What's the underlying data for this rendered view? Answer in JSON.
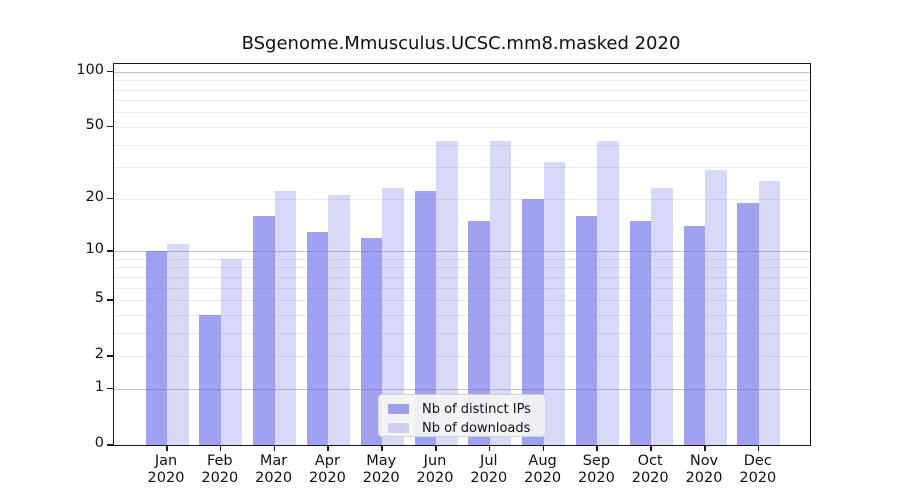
{
  "chart_data": {
    "type": "bar",
    "title": "BSgenome.Mmusculus.UCSC.mm8.masked 2020",
    "yscale": "log1p",
    "ylim": [
      0,
      110
    ],
    "yticks": [
      0,
      1,
      2,
      5,
      10,
      20,
      50,
      100
    ],
    "grid": {
      "decade_values": [
        1,
        10,
        100
      ],
      "minor_values": [
        2,
        3,
        4,
        5,
        6,
        7,
        8,
        9,
        20,
        30,
        40,
        50,
        60,
        70,
        80,
        90
      ]
    },
    "categories": [
      "Jan",
      "Feb",
      "Mar",
      "Apr",
      "May",
      "Jun",
      "Jul",
      "Aug",
      "Sep",
      "Oct",
      "Nov",
      "Dec"
    ],
    "xtick_year": "2020",
    "series": [
      {
        "name": "Nb of distinct IPs",
        "color_hex": "#a3a3f0",
        "fill": "rgba(104,104,232,0.62)",
        "values": [
          10,
          4,
          16,
          13,
          12,
          22,
          15,
          20,
          16,
          15,
          14,
          19
        ]
      },
      {
        "name": "Nb of downloads",
        "color_hex": "#d8d8f6",
        "fill": "rgba(104,104,232,0.26)",
        "values": [
          11,
          9,
          22,
          21,
          23,
          42,
          42,
          32,
          42,
          23,
          29,
          25
        ]
      }
    ],
    "legend_position": "lower center"
  }
}
